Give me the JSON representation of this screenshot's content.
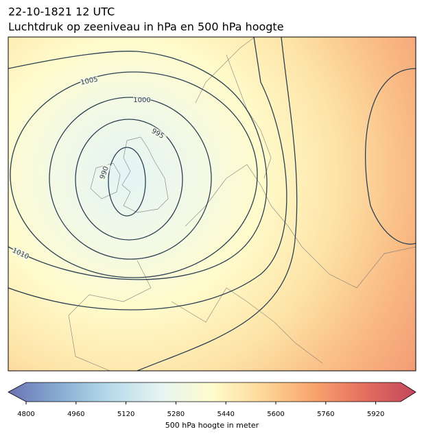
{
  "header": {
    "time": "22-10-1821 12 UTC",
    "title": "Luchtdruk op zeeniveau in hPa en 500 hPa hoogte"
  },
  "contours": [
    1005,
    1000,
    995,
    990,
    1010
  ],
  "colorbar": {
    "label": "500 hPa hoogte in meter",
    "lim": [
      4800,
      6000
    ],
    "ticks": [
      4800,
      4960,
      5120,
      5280,
      5440,
      5600,
      5760,
      5920
    ],
    "colors": [
      "#6a72b4",
      "#86acd2",
      "#b7dbea",
      "#e6f5f2",
      "#fffccd",
      "#fdd898",
      "#f8a36c",
      "#e46e5f",
      "#c2475e"
    ]
  }
}
